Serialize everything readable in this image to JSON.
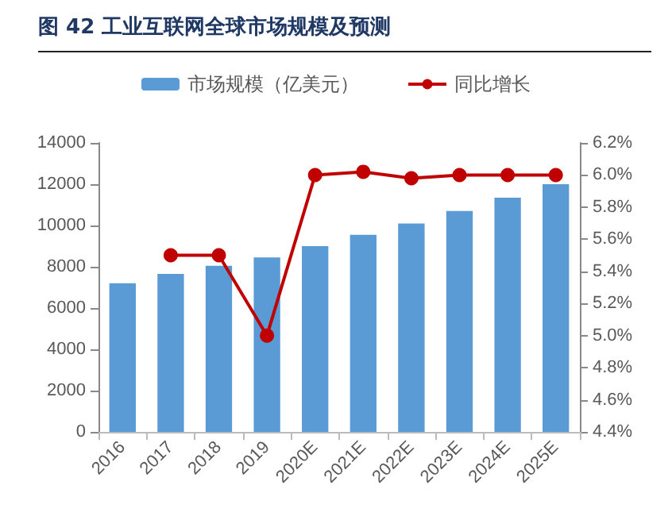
{
  "chart_data": {
    "type": "bar",
    "title": "图  42 工业互联网全球市场规模及预测",
    "categories": [
      "2016",
      "2017",
      "2018",
      "2019",
      "2020E",
      "2021E",
      "2022E",
      "2023E",
      "2024E",
      "2025E"
    ],
    "series": [
      {
        "name": "市场规模（亿美元）",
        "color": "#5b9bd5",
        "values": [
          7200,
          7650,
          8050,
          8450,
          9000,
          9550,
          10100,
          10700,
          11350,
          12000
        ]
      },
      {
        "name": "同比增长",
        "type": "line",
        "axis": "y2",
        "color": "#c00000",
        "marker": "circle",
        "values": [
          null,
          5.5,
          5.5,
          5.0,
          6.0,
          6.02,
          5.98,
          6.0,
          6.0,
          6.0
        ]
      }
    ],
    "ylim": [
      0,
      14000
    ],
    "yticks": [
      0,
      2000,
      4000,
      6000,
      8000,
      10000,
      12000,
      14000
    ],
    "y2lim": [
      4.4,
      6.2
    ],
    "y2ticks": [
      {
        "value": 4.4,
        "label": "4.4%"
      },
      {
        "value": 4.6,
        "label": "4.6%"
      },
      {
        "value": 4.8,
        "label": "4.8%"
      },
      {
        "value": 5.0,
        "label": "5.0%"
      },
      {
        "value": 5.2,
        "label": "5.2%"
      },
      {
        "value": 5.4,
        "label": "5.4%"
      },
      {
        "value": 5.6,
        "label": "5.6%"
      },
      {
        "value": 5.8,
        "label": "5.8%"
      },
      {
        "value": 6.0,
        "label": "6.0%"
      },
      {
        "value": 6.2,
        "label": "6.2%"
      }
    ],
    "grid": false,
    "legend": "top"
  }
}
